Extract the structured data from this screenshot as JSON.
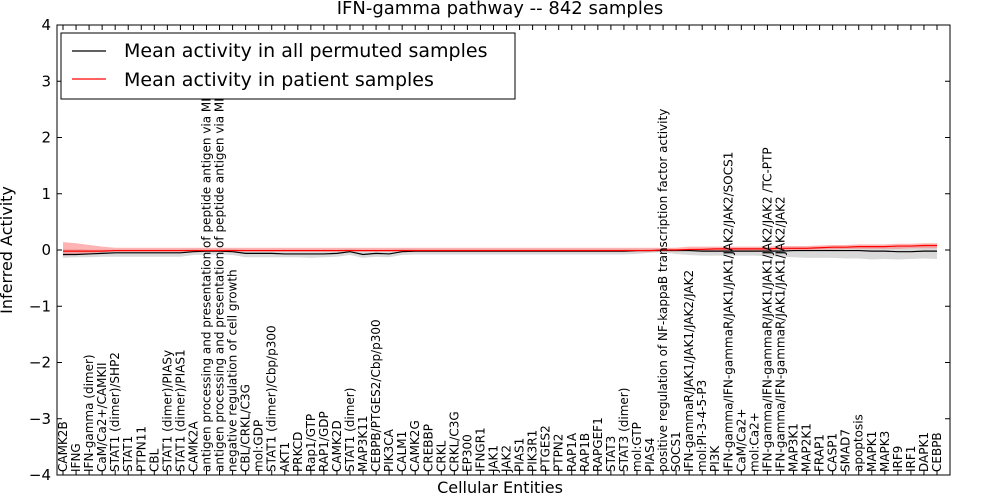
{
  "chart_data": {
    "type": "line",
    "title": "IFN-gamma pathway -- 842 samples",
    "xlabel": "Cellular Entities",
    "ylabel": "Inferred Activity",
    "ylim": [
      -4,
      4
    ],
    "yticks": [
      -4,
      -3,
      -2,
      -1,
      0,
      1,
      2,
      3,
      4
    ],
    "ytick_labels": [
      "−4",
      "−3",
      "−2",
      "−1",
      "0",
      "1",
      "2",
      "3",
      "4"
    ],
    "grid": false,
    "legend_position": "top-left",
    "categories": [
      "CAMK2B",
      "IFNG",
      "IFN-gamma (dimer)",
      "CaM/Ca2+/CAMKII",
      "STAT1 (dimer)/SHP2",
      "STAT1",
      "PTPN11",
      "CBL",
      "STAT1 (dimer)/PIASy",
      "STAT1 (dimer)/PIAS1",
      "CAMK2A",
      "antigen processing and presentation of peptide antigen via MHC class I",
      "antigen processing and presentation of peptide antigen via MHC class II",
      "negative regulation of cell growth",
      "CBL/CRKL/C3G",
      "mol:GDP",
      "STAT1 (dimer)/Cbp/p300",
      "AKT1",
      "PRKCD",
      "Rap1/GTP",
      "RAP1/GDP",
      "CAMK2D",
      "STAT1 (dimer)",
      "MAP3K11",
      "CEBPB/PTGES2/Cbp/p300",
      "PIK3CA",
      "CALM1",
      "CAMK2G",
      "CREBBP",
      "CRKL",
      "CRKL/C3G",
      "EP300",
      "IFNGR1",
      "JAK1",
      "JAK2",
      "PIAS1",
      "PIK3R1",
      "PTGES2",
      "PTPN2",
      "RAP1A",
      "RAP1B",
      "RAPGEF1",
      "STAT3",
      "STAT3 (dimer)",
      "mol:GTP",
      "PIAS4",
      "positive regulation of NF-kappaB transcription factor activity",
      "SOCS1",
      "IFN-gammaR/JAK1/JAK1/JAK2/JAK2",
      "mol:PI-3-4-5-P3",
      "PI3K",
      "IFN-gamma/IFN-gammaR/JAK1/JAK1/JAK2/JAK2/SOCS1",
      "CaM/Ca2+",
      "mol:Ca2+",
      "IFN-gamma/IFN-gammaR/JAK1/JAK1/JAK2/JAK2  /TC-PTP",
      "IFN-gamma/IFN-gammaR/JAK1/JAK1/JAK2/JAK2",
      "MAP3K1",
      "MAP2K1",
      "FRAP1",
      "CASP1",
      "SMAD7",
      "apoptosis",
      "MAPK1",
      "MAPK3",
      "IRF9",
      "IRF1",
      "DAPK1",
      "CEBPB"
    ],
    "series": [
      {
        "name": "Mean activity in all permuted samples",
        "color": "#000000",
        "values": [
          -0.08,
          -0.08,
          -0.07,
          -0.06,
          -0.05,
          -0.05,
          -0.05,
          -0.05,
          -0.05,
          -0.05,
          -0.03,
          -0.02,
          -0.02,
          -0.03,
          -0.06,
          -0.06,
          -0.06,
          -0.07,
          -0.07,
          -0.07,
          -0.07,
          -0.06,
          -0.03,
          -0.08,
          -0.06,
          -0.07,
          -0.03,
          -0.02,
          -0.02,
          -0.02,
          -0.02,
          -0.02,
          -0.02,
          -0.02,
          -0.02,
          -0.02,
          -0.02,
          -0.02,
          -0.02,
          -0.02,
          -0.02,
          -0.02,
          -0.02,
          -0.02,
          -0.01,
          -0.01,
          -0.01,
          -0.01,
          -0.01,
          -0.02,
          -0.02,
          -0.02,
          -0.02,
          -0.02,
          -0.02,
          -0.02,
          -0.01,
          -0.01,
          -0.01,
          -0.01,
          -0.01,
          -0.01,
          -0.02,
          -0.02,
          -0.03,
          -0.03,
          -0.02,
          -0.02
        ],
        "band_lower": [
          -0.14,
          -0.13,
          -0.13,
          -0.12,
          -0.12,
          -0.12,
          -0.12,
          -0.12,
          -0.12,
          -0.12,
          -0.09,
          -0.08,
          -0.08,
          -0.09,
          -0.13,
          -0.13,
          -0.13,
          -0.13,
          -0.13,
          -0.14,
          -0.13,
          -0.12,
          -0.09,
          -0.14,
          -0.12,
          -0.13,
          -0.09,
          -0.08,
          -0.08,
          -0.08,
          -0.08,
          -0.08,
          -0.08,
          -0.08,
          -0.08,
          -0.08,
          -0.08,
          -0.08,
          -0.08,
          -0.08,
          -0.08,
          -0.08,
          -0.08,
          -0.08,
          -0.07,
          -0.05,
          -0.04,
          -0.07,
          -0.09,
          -0.1,
          -0.1,
          -0.1,
          -0.1,
          -0.1,
          -0.11,
          -0.12,
          -0.13,
          -0.14,
          -0.14,
          -0.14,
          -0.15,
          -0.15,
          -0.17,
          -0.16,
          -0.17,
          -0.16,
          -0.15,
          -0.16
        ],
        "band_upper": [
          0.02,
          0.02,
          0.01,
          0.01,
          0.01,
          0.01,
          0.01,
          0.01,
          0.01,
          0.01,
          0.02,
          0.02,
          0.02,
          0.02,
          0.01,
          0.01,
          0.01,
          0.01,
          0.01,
          0.01,
          0.01,
          0.01,
          0.02,
          0.01,
          0.01,
          0.01,
          0.02,
          0.02,
          0.02,
          0.02,
          0.02,
          0.02,
          0.02,
          0.02,
          0.02,
          0.02,
          0.02,
          0.02,
          0.02,
          0.02,
          0.02,
          0.02,
          0.02,
          0.02,
          0.02,
          0.02,
          0.02,
          0.02,
          0.02,
          0.03,
          0.03,
          0.03,
          0.04,
          0.04,
          0.04,
          0.04,
          0.05,
          0.05,
          0.06,
          0.06,
          0.06,
          0.07,
          0.06,
          0.06,
          0.06,
          0.06,
          0.07,
          0.07
        ]
      },
      {
        "name": "Mean activity in patient samples",
        "color": "#ff0000",
        "values": [
          -0.02,
          -0.02,
          -0.02,
          -0.02,
          -0.01,
          -0.01,
          -0.01,
          -0.01,
          -0.01,
          -0.01,
          -0.01,
          -0.01,
          -0.01,
          -0.01,
          -0.01,
          -0.01,
          -0.01,
          -0.01,
          -0.01,
          -0.01,
          -0.01,
          -0.01,
          -0.01,
          -0.01,
          -0.01,
          -0.01,
          -0.01,
          -0.01,
          -0.01,
          -0.01,
          -0.01,
          -0.01,
          -0.01,
          -0.01,
          -0.01,
          -0.01,
          -0.01,
          -0.01,
          -0.01,
          -0.01,
          -0.01,
          -0.01,
          -0.01,
          -0.01,
          -0.01,
          -0.01,
          0.0,
          0.0,
          0.01,
          0.01,
          0.02,
          0.02,
          0.02,
          0.02,
          0.02,
          0.03,
          0.03,
          0.03,
          0.04,
          0.05,
          0.05,
          0.06,
          0.06,
          0.06,
          0.07,
          0.07,
          0.08,
          0.08
        ],
        "band_lower": [
          -0.1,
          -0.08,
          -0.06,
          -0.04,
          -0.03,
          -0.03,
          -0.03,
          -0.03,
          -0.03,
          -0.03,
          -0.03,
          -0.03,
          -0.03,
          -0.03,
          -0.03,
          -0.03,
          -0.03,
          -0.03,
          -0.03,
          -0.03,
          -0.03,
          -0.03,
          -0.03,
          -0.03,
          -0.03,
          -0.03,
          -0.03,
          -0.03,
          -0.03,
          -0.03,
          -0.03,
          -0.03,
          -0.03,
          -0.03,
          -0.03,
          -0.03,
          -0.03,
          -0.03,
          -0.03,
          -0.03,
          -0.03,
          -0.03,
          -0.03,
          -0.03,
          -0.03,
          -0.03,
          -0.02,
          -0.02,
          -0.01,
          -0.01,
          -0.01,
          -0.01,
          -0.01,
          -0.01,
          -0.01,
          0.0,
          0.0,
          0.0,
          0.01,
          0.01,
          0.02,
          0.02,
          0.02,
          0.02,
          0.02,
          0.03,
          0.03,
          0.03
        ],
        "band_upper": [
          0.14,
          0.12,
          0.09,
          0.06,
          0.04,
          0.04,
          0.04,
          0.04,
          0.04,
          0.04,
          0.04,
          0.04,
          0.04,
          0.04,
          0.04,
          0.04,
          0.04,
          0.04,
          0.04,
          0.04,
          0.04,
          0.04,
          0.04,
          0.04,
          0.04,
          0.04,
          0.04,
          0.04,
          0.04,
          0.04,
          0.04,
          0.04,
          0.04,
          0.04,
          0.04,
          0.04,
          0.04,
          0.04,
          0.04,
          0.04,
          0.04,
          0.04,
          0.04,
          0.04,
          0.04,
          0.04,
          0.04,
          0.04,
          0.06,
          0.06,
          0.06,
          0.06,
          0.06,
          0.06,
          0.06,
          0.07,
          0.07,
          0.07,
          0.08,
          0.09,
          0.09,
          0.1,
          0.1,
          0.1,
          0.11,
          0.11,
          0.12,
          0.12
        ]
      }
    ]
  }
}
